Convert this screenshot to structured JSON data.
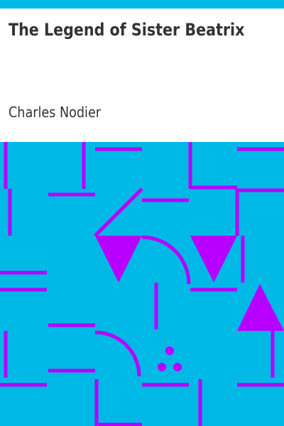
{
  "book": {
    "title": "The Legend of Sister Beatrix",
    "author": "Charles Nodier"
  },
  "colors": {
    "accent": "#00b8e6",
    "pattern_bg": "#00b8e6",
    "pattern_fg": "#b700ff",
    "text": "#333333"
  }
}
